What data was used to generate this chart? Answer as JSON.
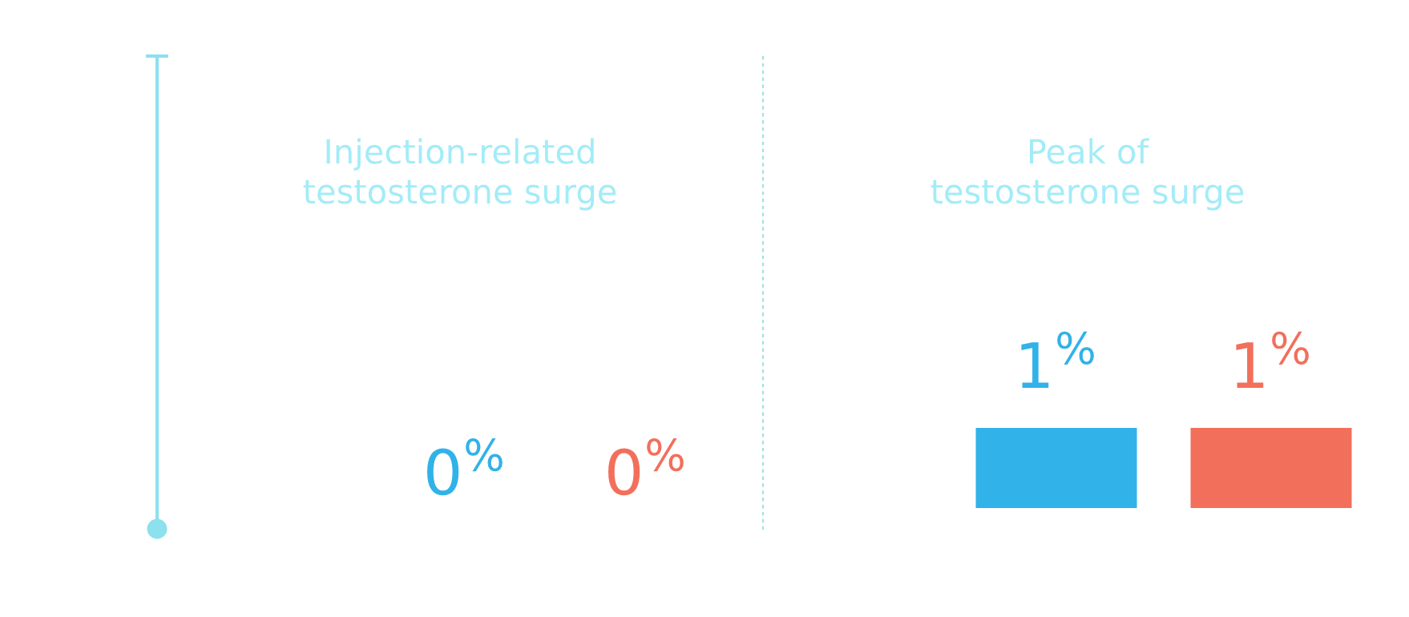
{
  "chart_data": [
    {
      "type": "other",
      "title": "Injection-related\ntestosterone surge",
      "categories": [
        null,
        null
      ],
      "colors": [
        "#31b2e8",
        "#f26f5c"
      ],
      "values": [
        0,
        0
      ],
      "value_labels": [
        "0$^{%}$",
        "0$^{%}$"
      ]
    },
    {
      "type": "bar",
      "title": "Peak of\ntestosterone surge",
      "categories": [
        null,
        null
      ],
      "colors": [
        "#31b2e8",
        "#f26f5c"
      ],
      "values": [
        1,
        1
      ],
      "value_labels": [
        "1$^{%}$",
        "1$^{%}$"
      ],
      "tick_labels": false
    }
  ]
}
